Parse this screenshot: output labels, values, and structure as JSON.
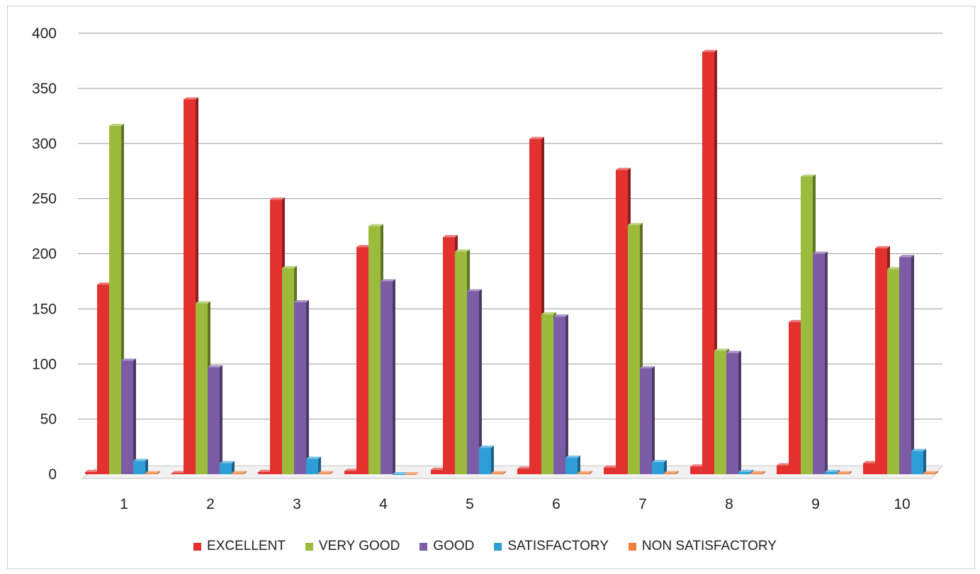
{
  "chart_data": {
    "type": "bar",
    "categories": [
      "1",
      "2",
      "3",
      "4",
      "5",
      "6",
      "7",
      "8",
      "9",
      "10"
    ],
    "ylim": [
      0,
      400
    ],
    "yticks": [
      0,
      50,
      100,
      150,
      200,
      250,
      300,
      350,
      400
    ],
    "grid": true,
    "legend_placement": "bottom",
    "series": [
      {
        "name": "EXCELLENT",
        "color": "#e2312f",
        "values": [
          2,
          1,
          2,
          3,
          4,
          5,
          6,
          7,
          8,
          10
        ]
      },
      {
        "name": "EXCELLENT",
        "color": "#e2312f",
        "values": [
          172,
          340,
          249,
          206,
          215,
          304,
          276,
          383,
          138,
          205
        ]
      },
      {
        "name": "VERY GOOD",
        "color": "#9bbb3c",
        "values": [
          316,
          155,
          187,
          225,
          202,
          145,
          226,
          112,
          270,
          186
        ]
      },
      {
        "name": "GOOD",
        "color": "#7d5ca6",
        "values": [
          103,
          97,
          156,
          175,
          166,
          143,
          96,
          110,
          200,
          197
        ]
      },
      {
        "name": "SATISFACTORY",
        "color": "#2e9ed8",
        "values": [
          12,
          10,
          14,
          0,
          24,
          15,
          11,
          2,
          2,
          21
        ]
      },
      {
        "name": "NON SATISFACTORY",
        "color": "#f0813c",
        "values": [
          1,
          1,
          1,
          0,
          1,
          1,
          1,
          1,
          1,
          1
        ]
      }
    ]
  },
  "legend": [
    {
      "label": "EXCELLENT",
      "color": "#e2312f"
    },
    {
      "label": "VERY GOOD",
      "color": "#9bbb3c"
    },
    {
      "label": "GOOD",
      "color": "#7d5ca6"
    },
    {
      "label": "SATISFACTORY",
      "color": "#2e9ed8"
    },
    {
      "label": "NON SATISFACTORY",
      "color": "#f0813c"
    }
  ]
}
